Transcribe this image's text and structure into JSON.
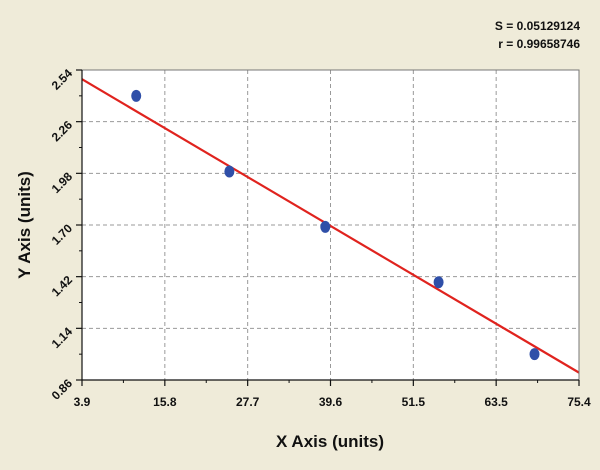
{
  "stats": {
    "s_text": "S = 0.05129124",
    "r_text": "r = 0.99658746"
  },
  "chart_data": {
    "type": "scatter",
    "title": "",
    "xlabel": "X Axis (units)",
    "ylabel": "Y Axis (units)",
    "xlim": [
      3.9,
      75.4
    ],
    "ylim": [
      0.86,
      2.54
    ],
    "x_ticks": [
      "3.9",
      "15.8",
      "27.7",
      "39.6",
      "51.5",
      "63.5",
      "75.4"
    ],
    "y_ticks": [
      "0.86",
      "1.14",
      "1.42",
      "1.70",
      "1.98",
      "2.26",
      "2.54"
    ],
    "grid": true,
    "series": [
      {
        "points": [
          {
            "x": 11.7,
            "y": 2.4
          },
          {
            "x": 25.1,
            "y": 1.99
          },
          {
            "x": 38.9,
            "y": 1.69
          },
          {
            "x": 55.2,
            "y": 1.39
          },
          {
            "x": 69.0,
            "y": 1.0
          }
        ]
      }
    ],
    "fit_line": {
      "x": [
        3.9,
        75.4
      ],
      "y": [
        2.49,
        0.9
      ]
    },
    "colors": {
      "points": "#2f4fa8",
      "fit_line": "#e0231e",
      "grid": "#9a9a9a",
      "plot_bg": "#ffffff"
    }
  }
}
